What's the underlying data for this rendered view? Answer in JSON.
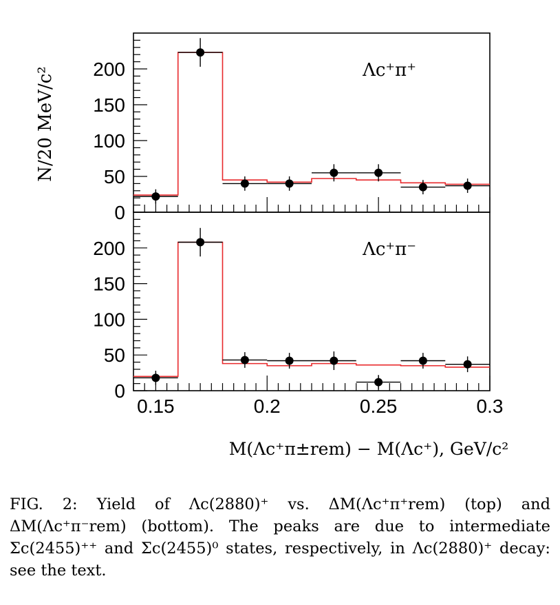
{
  "chart_data": [
    {
      "type": "scatter",
      "panel": "top",
      "panel_label": "Λc⁺π⁺",
      "ylabel": "N/20 MeV/c²",
      "xlabel": "",
      "xlim": [
        0.14,
        0.3
      ],
      "ylim": [
        0,
        250
      ],
      "yticks": [
        "0",
        "50",
        "100",
        "150",
        "200"
      ],
      "xticks": [],
      "series": [
        {
          "kind": "points_with_errors",
          "x": [
            0.15,
            0.17,
            0.19,
            0.21,
            0.23,
            0.25,
            0.27,
            0.29
          ],
          "y": [
            22,
            223,
            40,
            40,
            55,
            55,
            35,
            37
          ],
          "yerr": [
            10,
            20,
            10,
            10,
            12,
            12,
            10,
            10
          ],
          "bin_halfwidth": 0.01,
          "color": "#000000"
        },
        {
          "kind": "fit_histogram",
          "bin_edges": [
            0.14,
            0.16,
            0.18,
            0.2,
            0.22,
            0.24,
            0.26,
            0.28,
            0.3
          ],
          "values": [
            24,
            223,
            45,
            42,
            47,
            45,
            41,
            39
          ],
          "color": "#e8282b"
        }
      ]
    },
    {
      "type": "scatter",
      "panel": "bottom",
      "panel_label": "Λc⁺π⁻",
      "ylabel": "",
      "xlabel": "M(Λc⁺π±rem) − M(Λc⁺),  GeV/c²",
      "xlim": [
        0.14,
        0.3
      ],
      "ylim": [
        0,
        250
      ],
      "yticks": [
        "0",
        "50",
        "100",
        "150",
        "200"
      ],
      "xticks": [
        "0.15",
        "0.2",
        "0.25",
        "0.3"
      ],
      "series": [
        {
          "kind": "points_with_errors",
          "x": [
            0.15,
            0.17,
            0.19,
            0.21,
            0.23,
            0.25,
            0.27,
            0.29
          ],
          "y": [
            18,
            208,
            43,
            42,
            42,
            12,
            42,
            37
          ],
          "yerr": [
            10,
            20,
            11,
            11,
            13,
            10,
            11,
            11
          ],
          "bin_halfwidth": 0.01,
          "color": "#000000"
        },
        {
          "kind": "fit_histogram",
          "bin_edges": [
            0.14,
            0.16,
            0.18,
            0.2,
            0.22,
            0.24,
            0.26,
            0.28,
            0.3
          ],
          "values": [
            20,
            208,
            38,
            35,
            38,
            36,
            35,
            33
          ],
          "color": "#e8282b"
        }
      ]
    }
  ],
  "caption": {
    "text": "FIG. 2: Yield of Λc(2880)⁺ vs. ΔM(Λc⁺π⁺rem) (top) and ΔM(Λc⁺π⁻rem) (bottom). The peaks are due to intermediate Σc(2455)⁺⁺ and Σc(2455)⁰ states, respectively, in Λc(2880)⁺ decay: see the text."
  }
}
